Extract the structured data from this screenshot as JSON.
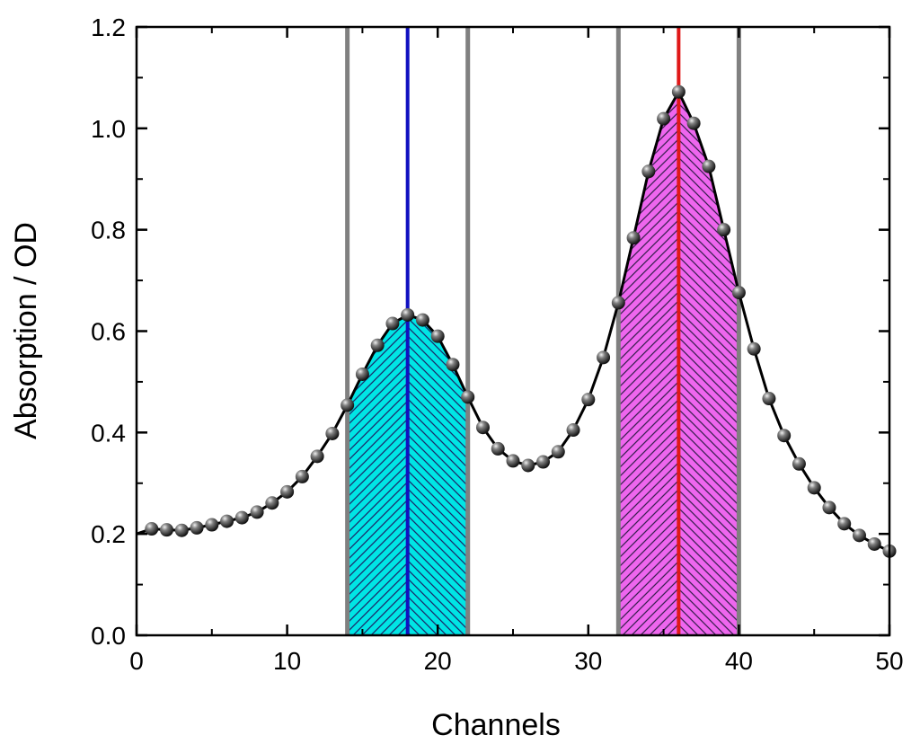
{
  "chart_data": {
    "type": "line",
    "xlabel": "Channels",
    "ylabel": "Absorption / OD",
    "xlim": [
      0,
      50
    ],
    "ylim": [
      0.0,
      1.2
    ],
    "xticks": [
      0,
      10,
      20,
      30,
      40,
      50
    ],
    "yticks": [
      0.0,
      0.2,
      0.4,
      0.6,
      0.8,
      1.0,
      1.2
    ],
    "ytick_labels": [
      "0.0",
      "0.2",
      "0.4",
      "0.6",
      "0.8",
      "1.0",
      "1.2"
    ],
    "grid": false,
    "series": [
      {
        "style": "black line with sphere markers",
        "x": [
          1,
          2,
          3,
          4,
          5,
          6,
          7,
          8,
          9,
          10,
          11,
          12,
          13,
          14,
          15,
          16,
          17,
          18,
          19,
          20,
          21,
          22,
          23,
          24,
          25,
          26,
          27,
          28,
          29,
          30,
          31,
          32,
          33,
          34,
          35,
          36,
          37,
          38,
          39,
          40,
          41,
          42,
          43,
          44,
          45,
          46,
          47,
          48,
          49,
          50
        ],
        "y": [
          0.21,
          0.208,
          0.207,
          0.212,
          0.218,
          0.225,
          0.232,
          0.243,
          0.261,
          0.283,
          0.313,
          0.353,
          0.398,
          0.454,
          0.515,
          0.572,
          0.615,
          0.632,
          0.622,
          0.59,
          0.534,
          0.47,
          0.41,
          0.368,
          0.344,
          0.335,
          0.342,
          0.362,
          0.405,
          0.465,
          0.548,
          0.656,
          0.784,
          0.915,
          1.019,
          1.072,
          1.01,
          0.925,
          0.8,
          0.676,
          0.565,
          0.467,
          0.394,
          0.338,
          0.291,
          0.252,
          0.22,
          0.197,
          0.18,
          0.166
        ]
      }
    ],
    "bands": [
      {
        "x_start": 14,
        "x_end": 22,
        "fill": "#00e5e5",
        "hatch": "#1a2a6a",
        "line_color": "#808080"
      },
      {
        "x_start": 32,
        "x_end": 40,
        "fill": "#ee66ee",
        "hatch": "#3a2050",
        "line_color": "#808080"
      }
    ],
    "peak_lines": [
      {
        "x": 18,
        "color": "#1010c0"
      },
      {
        "x": 36,
        "color": "#e01818"
      }
    ]
  }
}
